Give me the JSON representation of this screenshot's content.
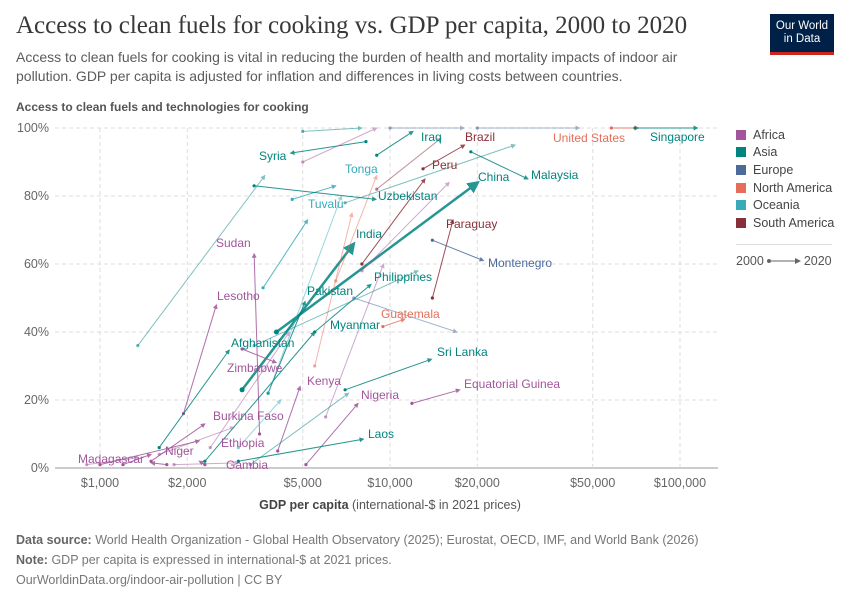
{
  "header": {
    "title": "Access to clean fuels for cooking vs. GDP per capita, 2000 to 2020",
    "subtitle": "Access to clean fuels for cooking is vital in reducing the burden of health and mortality impacts of indoor air pollution. GDP per capita is adjusted for inflation and differences in living costs between countries.",
    "logo": "Our World in Data"
  },
  "footer": {
    "source_label": "Data source:",
    "source": "World Health Organization - Global Health Observatory (2025); Eurostat, OECD, IMF, and World Bank (2026)",
    "note_label": "Note:",
    "note": "GDP per capita is expressed in international-$ at 2021 prices.",
    "url": "OurWorldinData.org/indoor-air-pollution | CC BY"
  },
  "chart_data": {
    "type": "scatter",
    "subtype": "connected arrows (2000 to 2020)",
    "ylabel": "Access to clean fuels and technologies for cooking",
    "xlabel_bold": "GDP per capita",
    "xlabel_rest": "(international-$ in 2021 prices)",
    "x_scale": "log",
    "xlim": [
      700,
      135000
    ],
    "ylim": [
      0,
      100
    ],
    "x_ticks": [
      {
        "v": 1000,
        "label": "$1,000"
      },
      {
        "v": 2000,
        "label": "$2,000"
      },
      {
        "v": 5000,
        "label": "$5,000"
      },
      {
        "v": 10000,
        "label": "$10,000"
      },
      {
        "v": 20000,
        "label": "$20,000"
      },
      {
        "v": 50000,
        "label": "$50,000"
      },
      {
        "v": 100000,
        "label": "$100,000"
      }
    ],
    "y_ticks": [
      {
        "v": 0,
        "label": "0%"
      },
      {
        "v": 20,
        "label": "20%"
      },
      {
        "v": 40,
        "label": "40%"
      },
      {
        "v": 60,
        "label": "60%"
      },
      {
        "v": 80,
        "label": "80%"
      },
      {
        "v": 100,
        "label": "100%"
      }
    ],
    "grid": true,
    "legend_placement": "right",
    "legend": [
      {
        "name": "Africa",
        "color": "#a2559c"
      },
      {
        "name": "Asia",
        "color": "#00847e"
      },
      {
        "name": "Europe",
        "color": "#4c6a9c"
      },
      {
        "name": "North America",
        "color": "#e56e5a"
      },
      {
        "name": "Oceania",
        "color": "#38aaba"
      },
      {
        "name": "South America",
        "color": "#883039"
      }
    ],
    "time_legend": {
      "start": "2000",
      "end": "2020"
    },
    "series": [
      {
        "name": "Syria",
        "region": "Asia",
        "start": [
          8260,
          96
        ],
        "end": [
          4540,
          92.6
        ]
      },
      {
        "name": "Iraq",
        "region": "Asia",
        "start": [
          9000,
          92
        ],
        "end": [
          12000,
          99
        ]
      },
      {
        "name": "Brazil",
        "region": "South America",
        "start": [
          13000,
          88
        ],
        "end": [
          18100,
          95
        ]
      },
      {
        "name": "United States",
        "region": "North America",
        "start": [
          58000,
          100
        ],
        "end": [
          72000,
          100
        ]
      },
      {
        "name": "Singapore",
        "region": "Asia",
        "start": [
          70000,
          100
        ],
        "end": [
          115000,
          100
        ]
      },
      {
        "name": "Peru",
        "region": "South America",
        "start": [
          8000,
          60
        ],
        "end": [
          13200,
          85
        ]
      },
      {
        "name": "Malaysia",
        "region": "Asia",
        "start": [
          19000,
          93
        ],
        "end": [
          29900,
          85
        ]
      },
      {
        "name": "China",
        "region": "Asia",
        "start": [
          4060,
          40
        ],
        "end": [
          20100,
          84
        ],
        "highlight": true
      },
      {
        "name": "Tonga",
        "region": "Oceania",
        "start": [
          4600,
          79
        ],
        "end": [
          6500,
          83
        ]
      },
      {
        "name": "Uzbekistan",
        "region": "Asia",
        "start": [
          3400,
          83
        ],
        "end": [
          8950,
          79
        ]
      },
      {
        "name": "Tuvalu",
        "region": "Oceania",
        "start": [
          3650,
          53
        ],
        "end": [
          5200,
          73
        ]
      },
      {
        "name": "Sudan",
        "region": "Africa",
        "start": [
          3550,
          10
        ],
        "end": [
          3400,
          63
        ]
      },
      {
        "name": "India",
        "region": "Asia",
        "start": [
          3090,
          23
        ],
        "end": [
          7510,
          66
        ],
        "highlight": true
      },
      {
        "name": "Paraguay",
        "region": "South America",
        "start": [
          14000,
          50
        ],
        "end": [
          16500,
          73
        ]
      },
      {
        "name": "Montenegro",
        "region": "Europe",
        "start": [
          14000,
          67
        ],
        "end": [
          21000,
          61
        ]
      },
      {
        "name": "Philippines",
        "region": "Asia",
        "start": [
          5500,
          40
        ],
        "end": [
          8600,
          54
        ]
      },
      {
        "name": "Lesotho",
        "region": "Africa",
        "start": [
          1940,
          16
        ],
        "end": [
          2520,
          48
        ]
      },
      {
        "name": "Pakistan",
        "region": "Asia",
        "start": [
          3800,
          22
        ],
        "end": [
          5100,
          49
        ]
      },
      {
        "name": "Guatemala",
        "region": "North America",
        "start": [
          9450,
          41.6
        ],
        "end": [
          11250,
          43.8
        ]
      },
      {
        "name": "Myanmar",
        "region": "Asia",
        "start": [
          2300,
          2
        ],
        "end": [
          5500,
          40
        ]
      },
      {
        "name": "Afghanistan",
        "region": "Asia",
        "start": [
          1600,
          6
        ],
        "end": [
          2790,
          34.7
        ]
      },
      {
        "name": "Sri Lanka",
        "region": "Asia",
        "start": [
          7000,
          23
        ],
        "end": [
          13900,
          32
        ]
      },
      {
        "name": "Zimbabwe",
        "region": "Africa",
        "start": [
          3090,
          35
        ],
        "end": [
          4050,
          31
        ]
      },
      {
        "name": "Kenya",
        "region": "Africa",
        "start": [
          4100,
          5
        ],
        "end": [
          4900,
          24
        ]
      },
      {
        "name": "Equatorial Guinea",
        "region": "Africa",
        "start": [
          11900,
          19
        ],
        "end": [
          17400,
          23
        ]
      },
      {
        "name": "Nigeria",
        "region": "Africa",
        "start": [
          5130,
          1
        ],
        "end": [
          7760,
          19
        ]
      },
      {
        "name": "Burkina Faso",
        "region": "Africa",
        "start": [
          1500,
          2
        ],
        "end": [
          2300,
          13
        ]
      },
      {
        "name": "Laos",
        "region": "Asia",
        "start": [
          3000,
          2
        ],
        "end": [
          8100,
          8.5
        ]
      },
      {
        "name": "Ethiopia",
        "region": "Africa",
        "start": [
          1000,
          1
        ],
        "end": [
          2200,
          8
        ]
      },
      {
        "name": "Niger",
        "region": "Africa",
        "start": [
          1200,
          1
        ],
        "end": [
          1500,
          4
        ]
      },
      {
        "name": "Madagascar",
        "region": "Africa",
        "start": [
          1700,
          1
        ],
        "end": [
          1500,
          1.5
        ]
      },
      {
        "name": "Gambia",
        "region": "Africa",
        "start": [
          2300,
          1
        ],
        "end": [
          2200,
          2
        ]
      },
      {
        "name": "",
        "region": "Asia",
        "start": [
          5000,
          99
        ],
        "end": [
          8000,
          100
        ]
      },
      {
        "name": "",
        "region": "Europe",
        "start": [
          20000,
          100
        ],
        "end": [
          45000,
          100
        ]
      },
      {
        "name": "",
        "region": "Europe",
        "start": [
          10000,
          100
        ],
        "end": [
          18000,
          100
        ]
      },
      {
        "name": "",
        "region": "Africa",
        "start": [
          5000,
          90
        ],
        "end": [
          9000,
          100
        ]
      },
      {
        "name": "",
        "region": "Asia",
        "start": [
          3400,
          36
        ],
        "end": [
          12500,
          58
        ]
      },
      {
        "name": "",
        "region": "Asia",
        "start": [
          1350,
          36
        ],
        "end": [
          3700,
          86
        ]
      },
      {
        "name": "",
        "region": "Oceania",
        "start": [
          3800,
          22
        ],
        "end": [
          6800,
          80
        ]
      },
      {
        "name": "",
        "region": "North America",
        "start": [
          6500,
          55
        ],
        "end": [
          9000,
          86
        ]
      },
      {
        "name": "",
        "region": "North America",
        "start": [
          5500,
          30
        ],
        "end": [
          7400,
          75
        ]
      },
      {
        "name": "",
        "region": "Africa",
        "start": [
          6000,
          15
        ],
        "end": [
          9500,
          60
        ]
      },
      {
        "name": "",
        "region": "Africa",
        "start": [
          2400,
          6
        ],
        "end": [
          4500,
          40
        ]
      },
      {
        "name": "",
        "region": "Asia",
        "start": [
          7000,
          78
        ],
        "end": [
          27000,
          95
        ]
      },
      {
        "name": "",
        "region": "South America",
        "start": [
          9000,
          82
        ],
        "end": [
          15000,
          97
        ]
      },
      {
        "name": "",
        "region": "Africa",
        "start": [
          1600,
          4
        ],
        "end": [
          2900,
          12
        ]
      },
      {
        "name": "",
        "region": "Oceania",
        "start": [
          3000,
          6
        ],
        "end": [
          4200,
          20
        ]
      },
      {
        "name": "",
        "region": "Africa",
        "start": [
          900,
          1
        ],
        "end": [
          1350,
          3
        ]
      },
      {
        "name": "",
        "region": "Africa",
        "start": [
          1800,
          1
        ],
        "end": [
          3000,
          1.5
        ]
      },
      {
        "name": "",
        "region": "Asia",
        "start": [
          3300,
          1
        ],
        "end": [
          7200,
          22
        ]
      },
      {
        "name": "",
        "region": "Europe",
        "start": [
          7500,
          50
        ],
        "end": [
          17000,
          40
        ]
      },
      {
        "name": "",
        "region": "Africa",
        "start": [
          8000,
          58
        ],
        "end": [
          16000,
          84
        ]
      }
    ]
  }
}
